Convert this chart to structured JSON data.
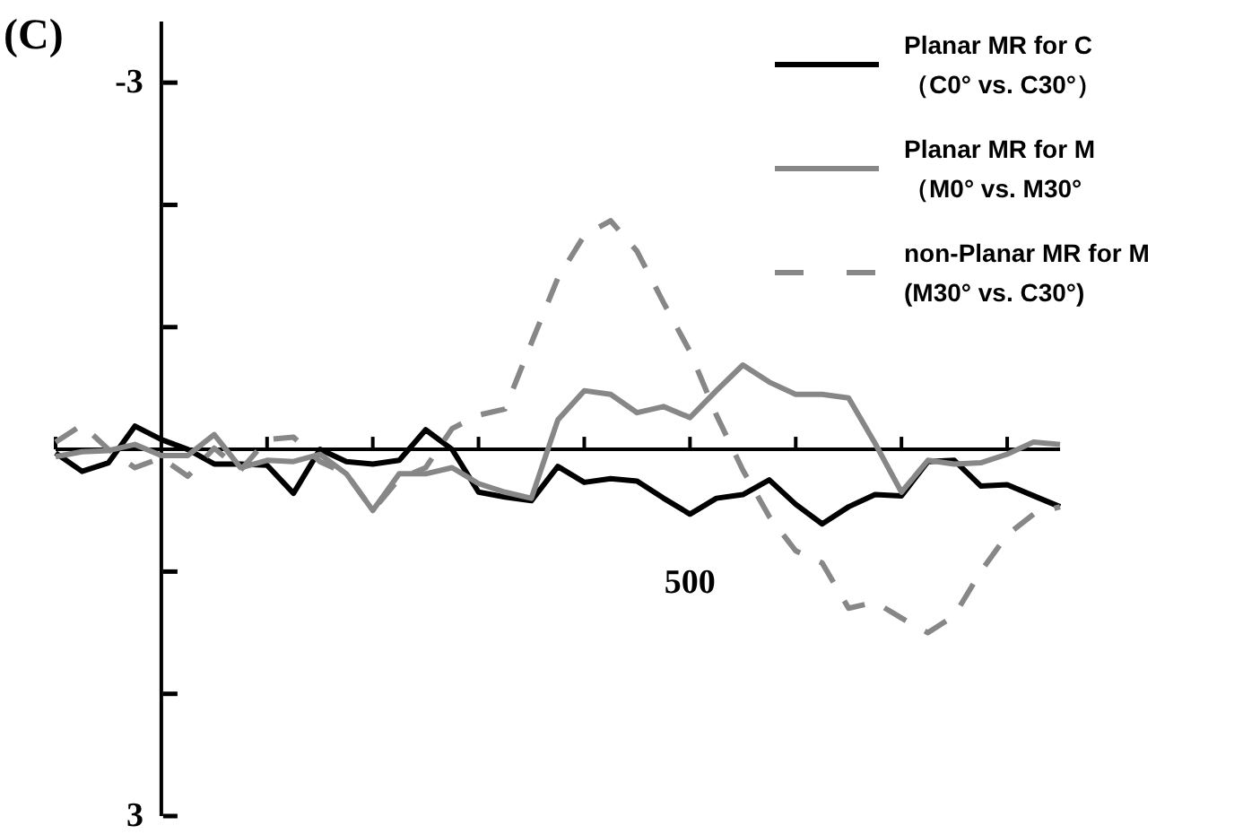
{
  "chart_data": {
    "type": "line",
    "title": "(C)",
    "legend": "top right",
    "annotations": [
      "500"
    ],
    "ylim": [
      3,
      -3.5
    ],
    "yticks": [
      {
        "value": -3,
        "label": "-3"
      },
      {
        "value": 3,
        "label": "3"
      }
    ],
    "categories": [
      null,
      null,
      null,
      null,
      null,
      null,
      null,
      null,
      null,
      null,
      null,
      null,
      null,
      null,
      null,
      null,
      null,
      null,
      null,
      null,
      null,
      null,
      null,
      null,
      null,
      null,
      null,
      null,
      null,
      null,
      null,
      null,
      null,
      null,
      null,
      null,
      null,
      null,
      null
    ],
    "series": [
      {
        "name": "Planar MR for C\n（C0° vs. C30°）",
        "color": "#000000",
        "line_style": "solid",
        "values": [
          0.03,
          0.18,
          0.11,
          -0.19,
          -0.08,
          0,
          0.12,
          0.12,
          0.13,
          0.36,
          0,
          0.1,
          0.12,
          0.09,
          -0.16,
          0,
          0.35,
          0.39,
          0.42,
          0.14,
          0.27,
          0.24,
          0.26,
          0.4,
          0.53,
          0.4,
          0.37,
          0.25,
          0.45,
          0.61,
          0.47,
          0.37,
          0.38,
          0.1,
          0.09,
          0.3,
          0.29,
          0.38,
          0.47
        ]
      },
      {
        "name": "Planar MR for M\n（M0° vs. M30°",
        "color": "#878787",
        "line_style": "solid",
        "values": [
          0.06,
          0.02,
          0.01,
          -0.04,
          0.05,
          0.05,
          -0.12,
          0.15,
          0.09,
          0.1,
          0.04,
          0.2,
          0.5,
          0.2,
          0.2,
          0.15,
          0.28,
          0.35,
          0.4,
          -0.24,
          -0.48,
          -0.45,
          -0.3,
          -0.35,
          -0.26,
          -0.48,
          -0.69,
          -0.55,
          -0.45,
          -0.45,
          -0.42,
          -0.05,
          0.35,
          0.09,
          0.12,
          0.11,
          0.04,
          -0.06,
          -0.04
        ]
      },
      {
        "name": "non-Planar MR for M\n(M30° vs. C30°)",
        "color": "#878787",
        "line_style": "dashed",
        "values": [
          -0.06,
          -0.2,
          0,
          0.15,
          0.07,
          0.22,
          -0.01,
          0.17,
          -0.08,
          -0.1,
          0.1,
          0.2,
          0.5,
          0.24,
          0.15,
          -0.17,
          -0.28,
          -0.33,
          -0.87,
          -1.4,
          -1.75,
          -1.87,
          -1.62,
          -1.2,
          -0.8,
          -0.28,
          0.17,
          0.55,
          0.83,
          0.93,
          1.3,
          1.25,
          1.38,
          1.5,
          1.36,
          1,
          0.7,
          0.53,
          0.47
        ]
      }
    ]
  }
}
